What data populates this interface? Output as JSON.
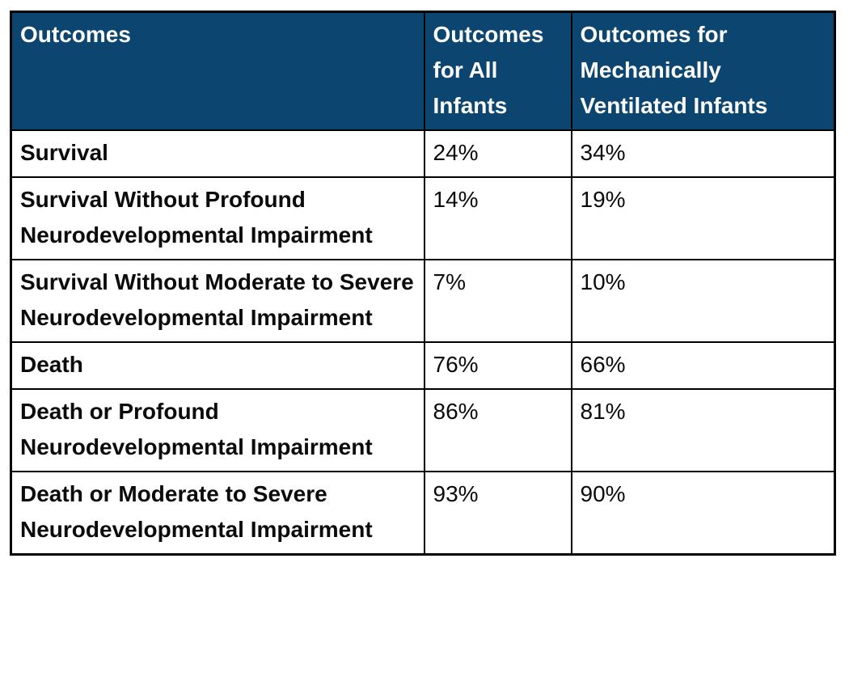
{
  "colors": {
    "header_background": "#0D4571",
    "header_text": "#FCFCFC",
    "body_text": "#0B0B0B",
    "border": "#000000"
  },
  "chart_data": {
    "type": "table",
    "title": "Outcomes",
    "columns": [
      "Outcomes",
      "Outcomes for All Infants",
      "Outcomes for Mechanically Ventilated Infants"
    ],
    "rows": [
      [
        "Survival",
        "24%",
        "34%"
      ],
      [
        "Survival Without Profound Neurodevelopmental Impairment",
        "14%",
        "19%"
      ],
      [
        "Survival Without Moderate to Severe Neurodevelopmental Impairment",
        "7%",
        "10%"
      ],
      [
        "Death",
        "76%",
        "66%"
      ],
      [
        "Death or Profound Neurodevelopmental Impairment",
        "86%",
        "81%"
      ],
      [
        "Death or Moderate to Severe Neurodevelopmental Impairment",
        "93%",
        "90%"
      ]
    ],
    "values_all_infants_pct": [
      24,
      14,
      7,
      76,
      86,
      93
    ],
    "values_mechanically_ventilated_pct": [
      34,
      19,
      10,
      66,
      81,
      90
    ],
    "legend_position": "none",
    "grid": true
  }
}
